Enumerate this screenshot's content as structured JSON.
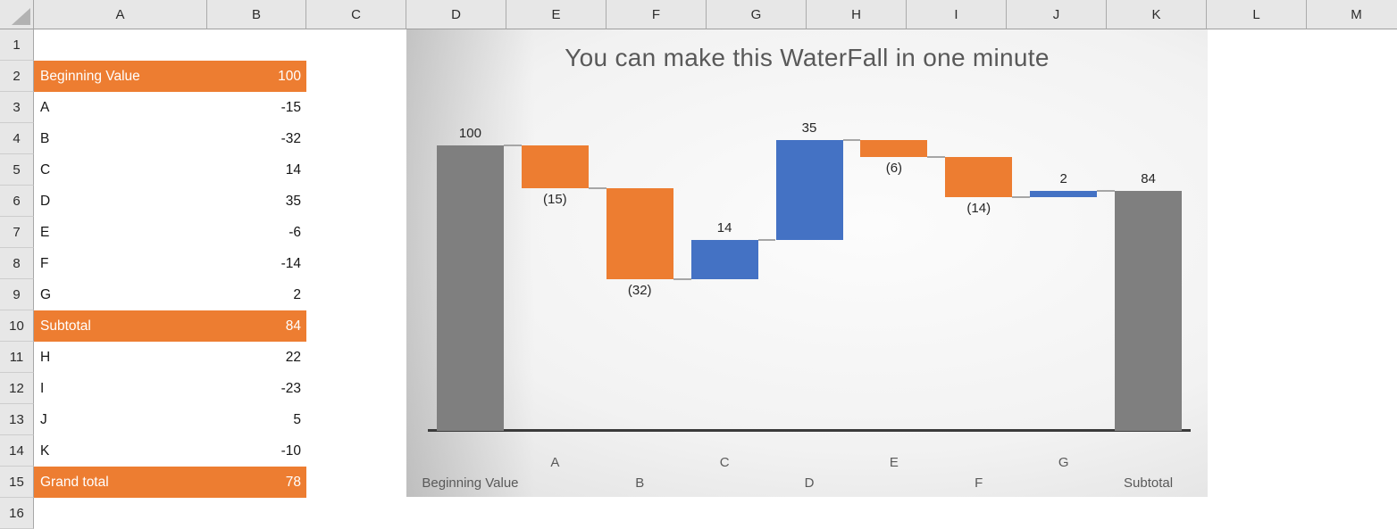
{
  "sheet": {
    "column_headers": [
      "A",
      "B",
      "C",
      "D",
      "E",
      "F",
      "G",
      "H",
      "I",
      "J",
      "K",
      "L",
      "M"
    ],
    "rows": [
      {
        "number": "1",
        "label": "",
        "value": "",
        "highlight": false
      },
      {
        "number": "2",
        "label": "Beginning Value",
        "value": "100",
        "highlight": true
      },
      {
        "number": "3",
        "label": "A",
        "value": "-15",
        "highlight": false
      },
      {
        "number": "4",
        "label": "B",
        "value": "-32",
        "highlight": false
      },
      {
        "number": "5",
        "label": "C",
        "value": "14",
        "highlight": false
      },
      {
        "number": "6",
        "label": "D",
        "value": "35",
        "highlight": false
      },
      {
        "number": "7",
        "label": "E",
        "value": "-6",
        "highlight": false
      },
      {
        "number": "8",
        "label": "F",
        "value": "-14",
        "highlight": false
      },
      {
        "number": "9",
        "label": "G",
        "value": "2",
        "highlight": false
      },
      {
        "number": "10",
        "label": "Subtotal",
        "value": "84",
        "highlight": true
      },
      {
        "number": "11",
        "label": "H",
        "value": "22",
        "highlight": false
      },
      {
        "number": "12",
        "label": "I",
        "value": "-23",
        "highlight": false
      },
      {
        "number": "13",
        "label": "J",
        "value": "5",
        "highlight": false
      },
      {
        "number": "14",
        "label": "K",
        "value": "-10",
        "highlight": false
      },
      {
        "number": "15",
        "label": "Grand total",
        "value": "78",
        "highlight": true
      },
      {
        "number": "16",
        "label": "",
        "value": "",
        "highlight": false
      }
    ],
    "highlight_color": "#ED7D31",
    "highlight_text_color": "#FFFFFF"
  },
  "chart": {
    "title": "You can make this WaterFall in one minute",
    "title_color": "#595959"
  },
  "chart_data": {
    "type": "waterfall",
    "title": "You can make this WaterFall in one minute",
    "categories": [
      "Beginning Value",
      "A",
      "B",
      "C",
      "D",
      "E",
      "F",
      "G",
      "Subtotal"
    ],
    "values": [
      100,
      -15,
      -32,
      14,
      35,
      -6,
      -14,
      2,
      84
    ],
    "item_types": [
      "total",
      "decrease",
      "decrease",
      "increase",
      "increase",
      "decrease",
      "decrease",
      "increase",
      "total"
    ],
    "data_labels": [
      "100",
      "(15)",
      "(32)",
      "14",
      "35",
      "(6)",
      "(14)",
      "2",
      "84"
    ],
    "cumulative": [
      100,
      85,
      53,
      67,
      102,
      96,
      82,
      84,
      84
    ],
    "xlabel": "",
    "ylabel": "",
    "ylim": [
      0,
      140
    ],
    "gridlines": false,
    "legend": "none",
    "colors": {
      "increase": "#4472C4",
      "decrease": "#ED7D31",
      "total": "#7F7F7F"
    },
    "connector_color": "#A6A6A6",
    "axis_line_color": "#3A3A3A",
    "data_label_color": "#262626",
    "category_label_color": "#595959"
  }
}
